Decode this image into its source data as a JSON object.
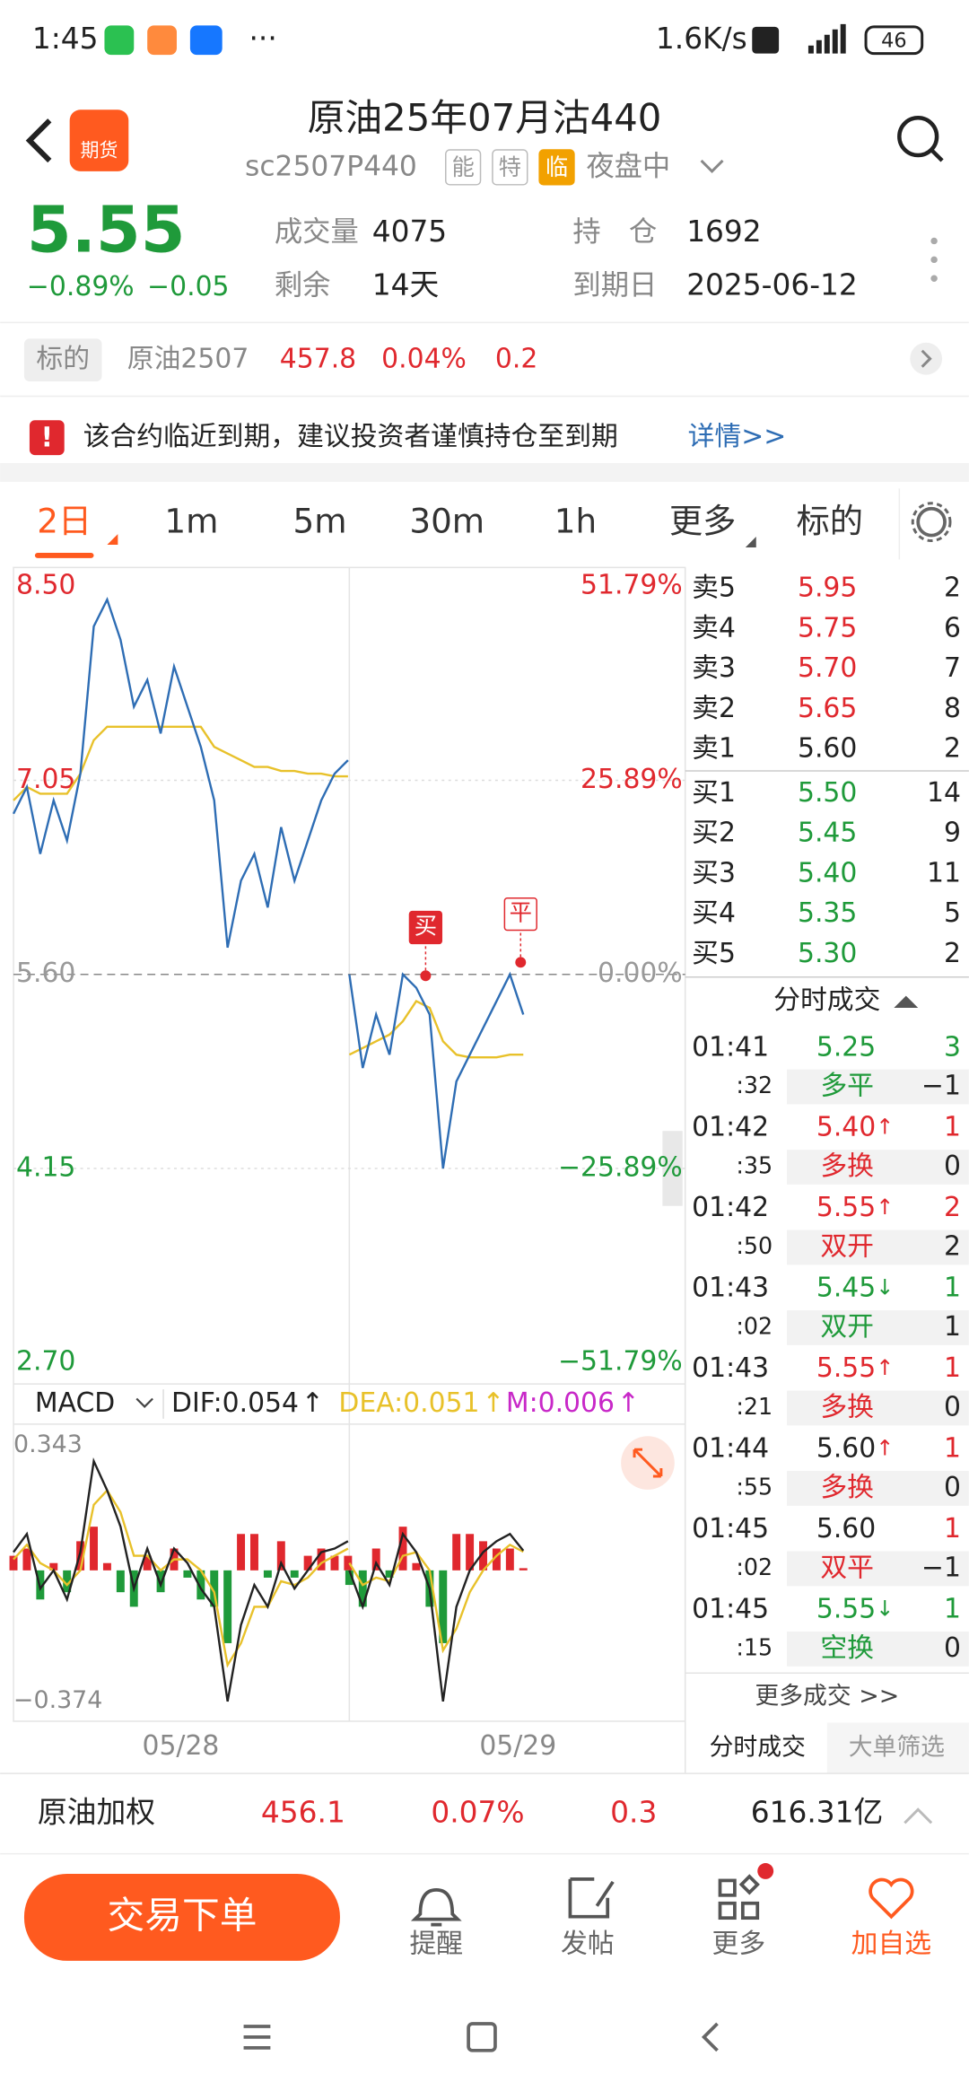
{
  "status": {
    "time": "1:45",
    "net": "1.6K/s",
    "battery": "46"
  },
  "header": {
    "title": "原油25年07月沽440",
    "code": "sc2507P440",
    "badges": [
      "能",
      "特",
      "临"
    ],
    "session": "夜盘中",
    "logo": "期货"
  },
  "quote": {
    "price": "5.55",
    "change_pct": "−0.89%",
    "change": "−0.05",
    "fields": [
      {
        "label": "成交量",
        "value": "4075"
      },
      {
        "label": "剩余",
        "value": "14天"
      },
      {
        "label": "持　仓",
        "value": "1692"
      },
      {
        "label": "到期日",
        "value": "2025-06-12"
      }
    ]
  },
  "underlying": {
    "tag": "标的",
    "name": "原油2507",
    "price": "457.8",
    "pct": "0.04%",
    "change": "0.2"
  },
  "notice": {
    "icon": "!",
    "text": "该合约临近到期，建议投资者谨慎持仓至到期",
    "link": "详情>>"
  },
  "tabs": [
    "2日",
    "1m",
    "5m",
    "30m",
    "1h",
    "更多",
    "标的"
  ],
  "chart": {
    "ylim": [
      2.7,
      8.5
    ],
    "yticks": [
      {
        "value": 8.5,
        "label": "8.50"
      },
      {
        "value": 7.05,
        "label": "7.05"
      },
      {
        "value": 5.6,
        "label": "5.60"
      },
      {
        "value": 4.15,
        "label": "4.15"
      },
      {
        "value": 2.7,
        "label": "2.70"
      }
    ],
    "pct_labels": [
      "51.79%",
      "25.89%",
      "0.00%",
      "−25.89%",
      "−51.79%"
    ],
    "price_color": "#2e6db4",
    "avg_color": "#e8c12a",
    "price_day1": [
      6.8,
      7.0,
      6.5,
      6.9,
      6.6,
      7.1,
      8.2,
      8.4,
      8.1,
      7.6,
      7.8,
      7.4,
      7.9,
      7.6,
      7.3,
      6.9,
      5.8,
      6.3,
      6.5,
      6.1,
      6.7,
      6.3,
      6.6,
      6.9,
      7.1,
      7.2
    ],
    "avg_day1": [
      6.9,
      7.0,
      6.95,
      6.95,
      6.95,
      7.1,
      7.35,
      7.45,
      7.45,
      7.45,
      7.45,
      7.45,
      7.45,
      7.45,
      7.45,
      7.3,
      7.25,
      7.2,
      7.15,
      7.15,
      7.12,
      7.12,
      7.1,
      7.1,
      7.08,
      7.08
    ],
    "price_day2": [
      5.6,
      4.9,
      5.3,
      5.0,
      5.6,
      5.5,
      5.3,
      4.15,
      4.8,
      5.0,
      5.2,
      5.4,
      5.6,
      5.3
    ],
    "avg_day2": [
      5.0,
      5.05,
      5.1,
      5.15,
      5.25,
      5.4,
      5.35,
      5.1,
      5.0,
      4.98,
      4.98,
      4.98,
      5.0,
      5.0
    ],
    "markers": [
      {
        "label": "买",
        "day2_index": 5.7,
        "value": 5.59
      },
      {
        "label": "平",
        "day2_index": 12.8,
        "value": 5.69
      }
    ],
    "dates": [
      "05/28",
      "05/29"
    ]
  },
  "macd": {
    "name": "MACD",
    "dif_label": "DIF:0.054",
    "dea_label": "DEA:0.051",
    "m_label": "M:0.006",
    "arrow": "↑",
    "ylim": [
      -0.374,
      0.343
    ],
    "yticks": [
      {
        "value": 0.343,
        "label": "0.343"
      },
      {
        "value": -0.374,
        "label": "−0.374"
      }
    ],
    "dif_day1": [
      0.05,
      0.1,
      -0.05,
      0.0,
      -0.08,
      0.05,
      0.3,
      0.22,
      0.12,
      -0.05,
      0.06,
      -0.04,
      0.06,
      0.02,
      -0.05,
      -0.1,
      -0.36,
      -0.15,
      -0.04,
      -0.1,
      0.02,
      -0.05,
      0.0,
      0.05,
      0.06,
      0.08
    ],
    "dea_day1": [
      0.03,
      0.07,
      0.02,
      0.0,
      -0.04,
      0.0,
      0.18,
      0.22,
      0.16,
      0.04,
      0.04,
      0.0,
      0.03,
      0.03,
      0.0,
      -0.06,
      -0.26,
      -0.2,
      -0.1,
      -0.1,
      -0.03,
      -0.04,
      -0.02,
      0.02,
      0.04,
      0.06
    ],
    "hist_day1": [
      0.04,
      0.06,
      -0.08,
      0.02,
      -0.06,
      0.08,
      0.12,
      0.02,
      -0.06,
      -0.1,
      0.04,
      -0.06,
      0.06,
      -0.02,
      -0.08,
      -0.1,
      -0.2,
      0.1,
      0.1,
      -0.02,
      0.08,
      -0.02,
      0.04,
      0.06,
      0.04,
      0.04
    ],
    "dif_day2": [
      0.0,
      -0.1,
      0.02,
      -0.04,
      0.1,
      0.05,
      -0.05,
      -0.36,
      -0.1,
      0.0,
      0.05,
      0.08,
      0.1,
      0.054
    ],
    "dea_day2": [
      0.02,
      -0.04,
      -0.02,
      -0.03,
      0.04,
      0.05,
      0.0,
      -0.22,
      -0.16,
      -0.06,
      0.0,
      0.04,
      0.07,
      0.051
    ],
    "hist_day2": [
      -0.04,
      -0.1,
      0.06,
      -0.02,
      0.12,
      0.02,
      -0.1,
      -0.2,
      0.1,
      0.1,
      0.08,
      0.06,
      0.06,
      0.006
    ]
  },
  "orderbook": {
    "asks": [
      {
        "label": "卖5",
        "price": "5.95",
        "vol": "2",
        "color": "#e0282e"
      },
      {
        "label": "卖4",
        "price": "5.75",
        "vol": "6",
        "color": "#e0282e"
      },
      {
        "label": "卖3",
        "price": "5.70",
        "vol": "7",
        "color": "#e0282e"
      },
      {
        "label": "卖2",
        "price": "5.65",
        "vol": "8",
        "color": "#e0282e"
      },
      {
        "label": "卖1",
        "price": "5.60",
        "vol": "2",
        "color": "#222222"
      }
    ],
    "bids": [
      {
        "label": "买1",
        "price": "5.50",
        "vol": "14",
        "color": "#1f9a3a"
      },
      {
        "label": "买2",
        "price": "5.45",
        "vol": "9",
        "color": "#1f9a3a"
      },
      {
        "label": "买3",
        "price": "5.40",
        "vol": "11",
        "color": "#1f9a3a"
      },
      {
        "label": "买4",
        "price": "5.35",
        "vol": "5",
        "color": "#1f9a3a"
      },
      {
        "label": "买5",
        "price": "5.30",
        "vol": "2",
        "color": "#1f9a3a"
      }
    ]
  },
  "trades_title": "分时成交",
  "trades": [
    {
      "time": "01:41",
      "price": "5.25",
      "dir": "",
      "vol": "3",
      "sec": ":32",
      "type": "多平",
      "sub_vol": "−1",
      "price_color": "#1f9a3a",
      "vol_color": "#1f9a3a",
      "type_color": "#1f9a3a"
    },
    {
      "time": "01:42",
      "price": "5.40",
      "dir": "↑",
      "vol": "1",
      "sec": ":35",
      "type": "多换",
      "sub_vol": "0",
      "price_color": "#e0282e",
      "vol_color": "#e0282e",
      "type_color": "#e0282e"
    },
    {
      "time": "01:42",
      "price": "5.55",
      "dir": "↑",
      "vol": "2",
      "sec": ":50",
      "type": "双开",
      "sub_vol": "2",
      "price_color": "#e0282e",
      "vol_color": "#e0282e",
      "type_color": "#e0282e"
    },
    {
      "time": "01:43",
      "price": "5.45",
      "dir": "↓",
      "vol": "1",
      "sec": ":02",
      "type": "双开",
      "sub_vol": "1",
      "price_color": "#1f9a3a",
      "vol_color": "#1f9a3a",
      "type_color": "#1f9a3a"
    },
    {
      "time": "01:43",
      "price": "5.55",
      "dir": "↑",
      "vol": "1",
      "sec": ":21",
      "type": "多换",
      "sub_vol": "0",
      "price_color": "#e0282e",
      "vol_color": "#e0282e",
      "type_color": "#e0282e"
    },
    {
      "time": "01:44",
      "price": "5.60",
      "dir": "↑",
      "vol": "1",
      "sec": ":55",
      "type": "多换",
      "sub_vol": "0",
      "price_color": "#222222",
      "vol_color": "#e0282e",
      "type_color": "#e0282e"
    },
    {
      "time": "01:45",
      "price": "5.60",
      "dir": "",
      "vol": "1",
      "sec": ":02",
      "type": "双平",
      "sub_vol": "−1",
      "price_color": "#222222",
      "vol_color": "#e0282e",
      "type_color": "#e0282e"
    },
    {
      "time": "01:45",
      "price": "5.55",
      "dir": "↓",
      "vol": "1",
      "sec": ":15",
      "type": "空换",
      "sub_vol": "0",
      "price_color": "#1f9a3a",
      "vol_color": "#1f9a3a",
      "type_color": "#1f9a3a"
    }
  ],
  "more_trades": "更多成交 >>",
  "side_tabs": [
    "分时成交",
    "大单筛选"
  ],
  "index_bar": {
    "name": "原油加权",
    "price": "456.1",
    "pct": "0.07%",
    "change": "0.3",
    "amount": "616.31亿"
  },
  "actions": {
    "trade": "交易下单",
    "items": [
      "提醒",
      "发帖",
      "更多",
      "加自选"
    ]
  }
}
